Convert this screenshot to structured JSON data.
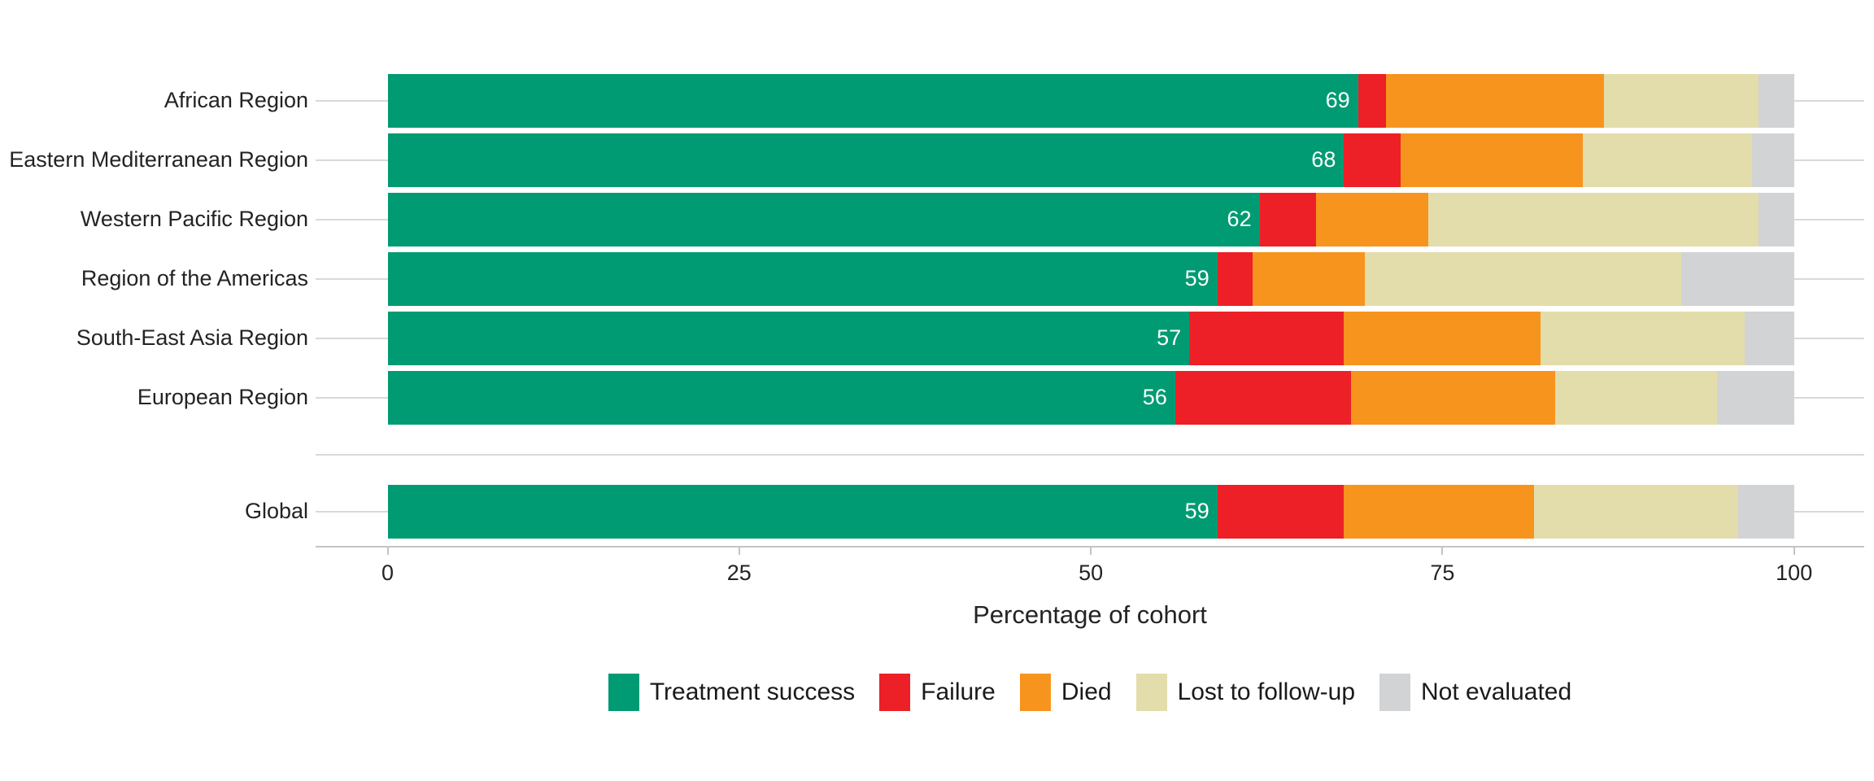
{
  "chart_data": {
    "type": "bar",
    "orientation": "horizontal",
    "stacked": true,
    "title": "",
    "xlabel": "Percentage of cohort",
    "ylabel": "",
    "xlim": [
      0,
      100
    ],
    "x_ticks": [
      0,
      25,
      50,
      75,
      100
    ],
    "grid": "horizontal-category-lines",
    "legend_position": "bottom",
    "categories": [
      "African Region",
      "Eastern Mediterranean Region",
      "Western Pacific Region",
      "Region of the Americas",
      "South-East Asia Region",
      "European Region",
      "Global"
    ],
    "gap_after_category_index": 5,
    "series": [
      {
        "name": "Treatment success",
        "values": [
          69,
          68,
          62,
          59,
          57,
          56,
          59
        ]
      },
      {
        "name": "Failure",
        "values": [
          2,
          4,
          4,
          2.5,
          11,
          12.5,
          9
        ]
      },
      {
        "name": "Died",
        "values": [
          15.5,
          13,
          8,
          8,
          14,
          14.5,
          13.5
        ]
      },
      {
        "name": "Lost to follow-up",
        "values": [
          11,
          12,
          23.5,
          22.5,
          14.5,
          11.5,
          14.5
        ]
      },
      {
        "name": "Not evaluated",
        "values": [
          2.5,
          3,
          2.5,
          8,
          3.5,
          5.5,
          4
        ]
      }
    ],
    "bar_value_labels": [
      "69",
      "68",
      "62",
      "59",
      "57",
      "56",
      "59"
    ],
    "bar_value_label_series": "Treatment success",
    "colors": {
      "Treatment success": "#009b72",
      "Failure": "#ec2026",
      "Died": "#f7941e",
      "Lost to follow-up": "#e3ddab",
      "Not evaluated": "#d1d3d4",
      "value_label_text": "#ffffff",
      "gridline": "#d9d9d9",
      "axis_line": "#c4c4c4",
      "text": "#232323"
    }
  }
}
